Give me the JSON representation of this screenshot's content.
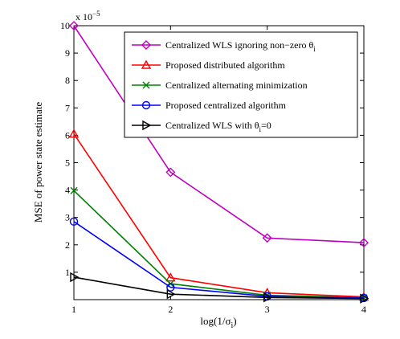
{
  "chart_data": {
    "type": "line",
    "title": "",
    "xlabel": "log(1/σ",
    "xlabel_sub": "i",
    "xlabel_tail": ")",
    "ylabel": "MSE of power state estimate",
    "y_exponent_label": "x 10",
    "y_exponent_value": "−5",
    "x_ticks": [
      "1",
      "2",
      "3",
      "4"
    ],
    "y_ticks": [
      "1",
      "2",
      "3",
      "4",
      "5",
      "6",
      "7",
      "8",
      "9",
      "10"
    ],
    "xlim": [
      1,
      4
    ],
    "ylim": [
      0,
      10
    ],
    "grid": false,
    "legend_position": "top-right",
    "x": [
      1,
      2,
      3,
      4
    ],
    "series": [
      {
        "name": "Centralized WLS  ignoring non−zero θ",
        "name_sub": "i",
        "color": "#bf00bf",
        "marker": "diamond",
        "values": [
          10.0,
          4.65,
          2.25,
          2.08
        ]
      },
      {
        "name": "Proposed distributed algorithm",
        "color": "#ff0000",
        "marker": "triangle-up",
        "values": [
          6.05,
          0.8,
          0.25,
          0.1
        ]
      },
      {
        "name": "Centralized alternating minimization",
        "color": "#008000",
        "marker": "x",
        "values": [
          3.98,
          0.58,
          0.16,
          0.07
        ]
      },
      {
        "name": "Proposed centralized algorithm",
        "color": "#0000ff",
        "marker": "circle",
        "values": [
          2.85,
          0.45,
          0.12,
          0.06
        ]
      },
      {
        "name": "Centralized WLS with θ",
        "name_sub": "i",
        "name_tail": "=0",
        "color": "#000000",
        "marker": "triangle-right",
        "values": [
          0.82,
          0.2,
          0.08,
          0.04
        ]
      }
    ]
  }
}
